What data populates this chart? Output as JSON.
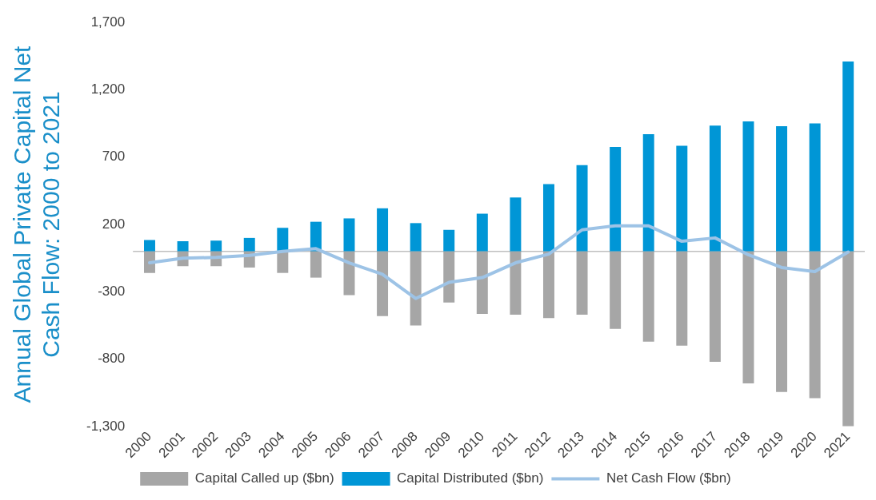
{
  "chart_data": {
    "type": "bar",
    "ylabel": "Annual Global Private Capital Net Cash Flow: 2000 to 2021",
    "categories": [
      "2000",
      "2001",
      "2002",
      "2003",
      "2004",
      "2005",
      "2006",
      "2007",
      "2008",
      "2009",
      "2010",
      "2011",
      "2012",
      "2013",
      "2014",
      "2015",
      "2016",
      "2017",
      "2018",
      "2019",
      "2020",
      "2021"
    ],
    "stacked": true,
    "series": [
      {
        "name": "Capital Called up ($bn)",
        "color": "#a6a6a6",
        "values": [
          -160,
          -110,
          -110,
          -120,
          -160,
          -195,
          -325,
          -480,
          -550,
          -380,
          -465,
          -470,
          -495,
          -470,
          -575,
          -670,
          -700,
          -820,
          -980,
          -1045,
          -1090,
          -1300
        ]
      },
      {
        "name": "Capital Distributed ($bn)",
        "color": "#0096d6",
        "values": [
          85,
          75,
          80,
          100,
          175,
          220,
          245,
          320,
          210,
          160,
          280,
          400,
          500,
          640,
          775,
          870,
          785,
          935,
          965,
          930,
          950,
          1410
        ]
      },
      {
        "name": "Net Cash Flow ($bn)",
        "type": "line",
        "color": "#9dc3e6",
        "values": [
          -85,
          -50,
          -45,
          -30,
          0,
          20,
          -85,
          -170,
          -350,
          -230,
          -195,
          -85,
          -20,
          160,
          190,
          190,
          75,
          100,
          -25,
          -120,
          -150,
          -5
        ]
      }
    ],
    "ylim": [
      -1300,
      1700
    ],
    "yticks": [
      {
        "value": -1300,
        "label": "-1,300"
      },
      -800,
      -300,
      200,
      700,
      {
        "value": 1200,
        "label": "1,200"
      },
      {
        "value": 1700,
        "label": "1,700"
      }
    ],
    "grid": false,
    "legend": "bottom",
    "marker": "none",
    "line_style": "solid"
  }
}
